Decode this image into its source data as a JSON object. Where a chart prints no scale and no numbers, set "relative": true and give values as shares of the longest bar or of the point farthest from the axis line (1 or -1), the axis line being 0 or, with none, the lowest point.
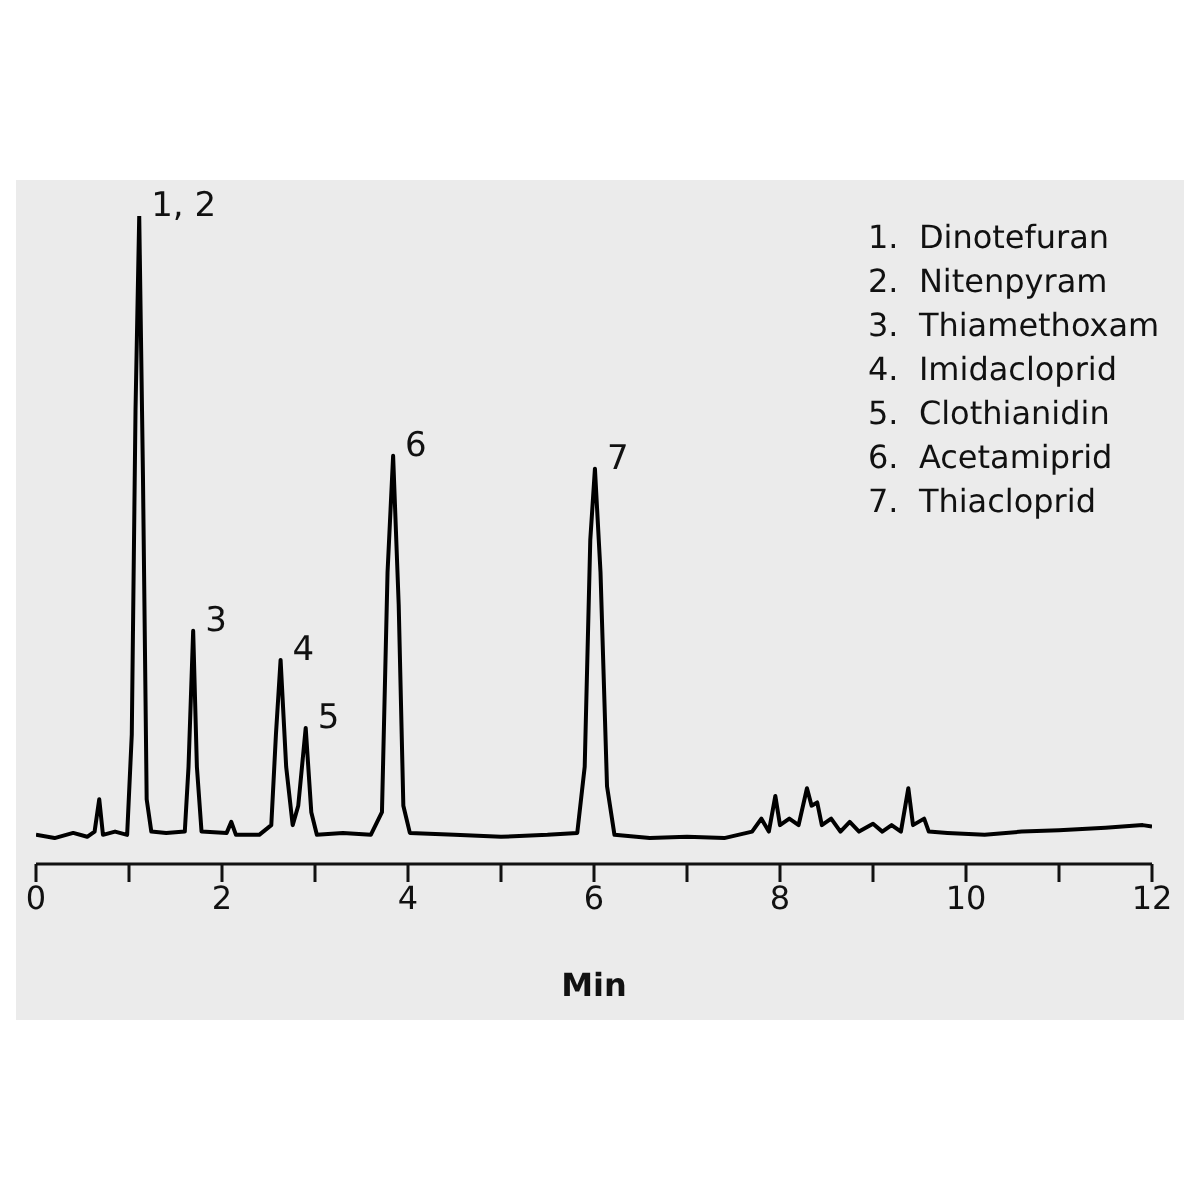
{
  "chart_data": {
    "type": "line",
    "relative": true,
    "xlabel": "Min",
    "xlim": [
      0,
      12
    ],
    "xticks": [
      0,
      {
        "value": 1,
        "label": null
      },
      2,
      {
        "value": 3,
        "label": null
      },
      4,
      {
        "value": 5,
        "label": null
      },
      6,
      {
        "value": 7,
        "label": null
      },
      8,
      {
        "value": 9,
        "label": null
      },
      10,
      {
        "value": 11,
        "label": null
      },
      12
    ],
    "grid": false,
    "marker": "none",
    "line_style": "solid",
    "x": [
      0,
      0.2,
      0.4,
      0.55,
      0.63,
      0.68,
      0.72,
      0.85,
      0.98,
      1.03,
      1.07,
      1.11,
      1.15,
      1.19,
      1.24,
      1.4,
      1.6,
      1.64,
      1.69,
      1.73,
      1.78,
      2.05,
      2.1,
      2.15,
      2.4,
      2.53,
      2.58,
      2.63,
      2.69,
      2.76,
      2.82,
      2.9,
      2.96,
      3.02,
      3.3,
      3.6,
      3.72,
      3.78,
      3.84,
      3.9,
      3.95,
      4.02,
      4.5,
      5.0,
      5.5,
      5.82,
      5.9,
      5.96,
      6.01,
      6.07,
      6.14,
      6.22,
      6.6,
      7.0,
      7.4,
      7.7,
      7.8,
      7.88,
      7.95,
      8.0,
      8.1,
      8.2,
      8.29,
      8.34,
      8.4,
      8.45,
      8.55,
      8.65,
      8.75,
      8.85,
      9.0,
      9.1,
      9.2,
      9.3,
      9.38,
      9.43,
      9.55,
      9.6,
      9.8,
      10.2,
      10.6,
      11.0,
      11.5,
      11.9,
      12.0
    ],
    "series": [
      {
        "color": "#000000",
        "values": [
          0.045,
          0.04,
          0.048,
          0.042,
          0.05,
          0.1,
          0.045,
          0.05,
          0.045,
          0.2,
          0.7,
          1.0,
          0.6,
          0.1,
          0.05,
          0.048,
          0.05,
          0.15,
          0.36,
          0.15,
          0.05,
          0.048,
          0.065,
          0.045,
          0.045,
          0.06,
          0.2,
          0.315,
          0.15,
          0.06,
          0.09,
          0.21,
          0.08,
          0.045,
          0.048,
          0.045,
          0.08,
          0.45,
          0.63,
          0.4,
          0.09,
          0.048,
          0.045,
          0.042,
          0.045,
          0.048,
          0.15,
          0.5,
          0.61,
          0.45,
          0.12,
          0.045,
          0.04,
          0.042,
          0.04,
          0.05,
          0.07,
          0.05,
          0.105,
          0.06,
          0.07,
          0.06,
          0.117,
          0.09,
          0.095,
          0.06,
          0.07,
          0.05,
          0.065,
          0.05,
          0.062,
          0.05,
          0.06,
          0.05,
          0.117,
          0.06,
          0.07,
          0.05,
          0.048,
          0.045,
          0.05,
          0.052,
          0.056,
          0.06,
          0.058
        ]
      }
    ],
    "annotations": [
      {
        "text": "1, 2",
        "x": 1.11,
        "y": 1.0
      },
      {
        "text": "3",
        "x": 1.69,
        "y": 0.36
      },
      {
        "text": "4",
        "x": 2.63,
        "y": 0.315
      },
      {
        "text": "5",
        "x": 2.9,
        "y": 0.21
      },
      {
        "text": "6",
        "x": 3.84,
        "y": 0.63
      },
      {
        "text": "7",
        "x": 6.01,
        "y": 0.61
      },
      "1.  Dinotefuran",
      "2.  Nitenpyram",
      "3.  Thiamethoxam",
      "4.  Imidacloprid",
      "5.  Clothianidin",
      "6.  Acetamiprid",
      "7.  Thiacloprid"
    ]
  }
}
